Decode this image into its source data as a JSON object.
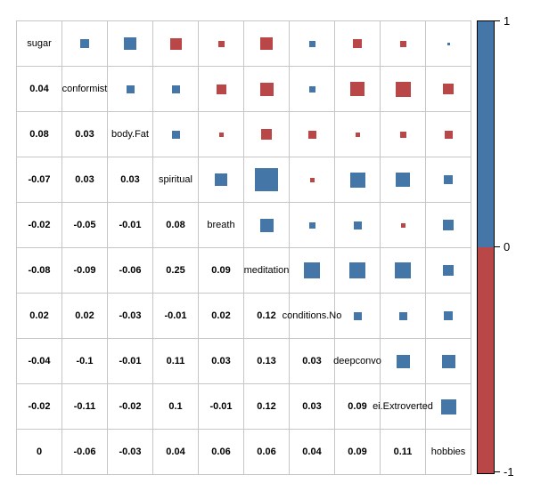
{
  "chart_data": {
    "type": "heatmap",
    "subtype": "correlation-matrix",
    "title": "",
    "variables": [
      "sugar",
      "conformist",
      "body.Fat",
      "spiritual",
      "breath",
      "meditation",
      "conditions.No",
      "deepconvo",
      "ei.Extroverted",
      "hobbies"
    ],
    "rows": [
      {
        "label": "sugar",
        "values": []
      },
      {
        "label": "conformist",
        "values": [
          "0.04"
        ]
      },
      {
        "label": "body.Fat",
        "values": [
          "0.08",
          "0.03"
        ]
      },
      {
        "label": "spiritual",
        "values": [
          "-0.07",
          "0.03",
          "0.03"
        ]
      },
      {
        "label": "breath",
        "values": [
          "-0.02",
          "-0.05",
          "-0.01",
          "0.08"
        ]
      },
      {
        "label": "meditation",
        "values": [
          "-0.08",
          "-0.09",
          "-0.06",
          "0.25",
          "0.09"
        ]
      },
      {
        "label": "conditions.No",
        "values": [
          "0.02",
          "0.02",
          "-0.03",
          "-0.01",
          "0.02",
          "0.12"
        ]
      },
      {
        "label": "deepconvo",
        "values": [
          "-0.04",
          "-0.1",
          "-0.01",
          "0.11",
          "0.03",
          "0.13",
          "0.03"
        ]
      },
      {
        "label": "ei.Extroverted",
        "values": [
          "-0.02",
          "-0.11",
          "-0.02",
          "0.1",
          "-0.01",
          "0.12",
          "0.03",
          "0.09"
        ]
      },
      {
        "label": "hobbies",
        "values": [
          "0",
          "-0.06",
          "-0.03",
          "0.04",
          "0.06",
          "0.06",
          "0.04",
          "0.09",
          "0.11"
        ]
      }
    ],
    "upper_triangle_style": "squares sized by sqrt(|r|) of symmetric value, blue positive, red negative",
    "value_range": [
      -1,
      1
    ],
    "colors": {
      "positive": "#4476A7",
      "negative": "#B94747",
      "gridline": "#C6C6C6",
      "text": "#000000",
      "background": "#FFFFFF"
    },
    "colorbar": {
      "position": "right",
      "tick_labels": {
        "top": "1",
        "middle": "0",
        "bottom": "-1"
      },
      "positive_color": "#4476A7",
      "negative_color": "#B94747"
    }
  }
}
